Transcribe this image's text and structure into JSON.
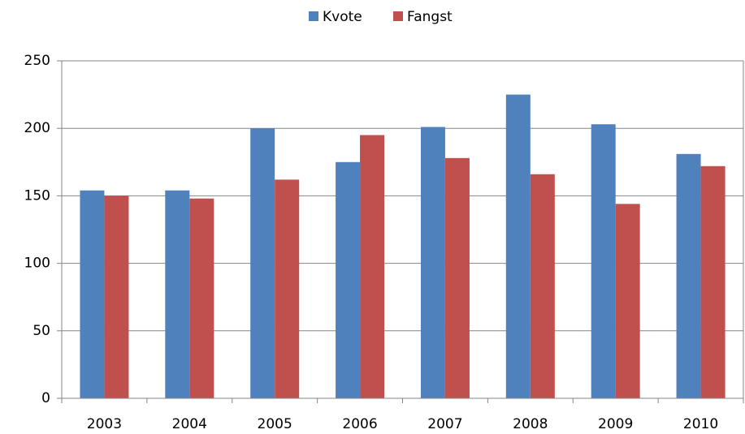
{
  "chart_data": {
    "type": "bar",
    "categories": [
      "2003",
      "2004",
      "2005",
      "2006",
      "2007",
      "2008",
      "2009",
      "2010"
    ],
    "series": [
      {
        "name": "Kvote",
        "color": "#4f81bd",
        "values": [
          154,
          154,
          200,
          175,
          201,
          225,
          203,
          181
        ]
      },
      {
        "name": "Fangst",
        "color": "#c0504d",
        "values": [
          150,
          148,
          162,
          195,
          178,
          166,
          144,
          172
        ]
      }
    ],
    "ylim": [
      0,
      250
    ],
    "yticks": [
      0,
      50,
      100,
      150,
      200,
      250
    ],
    "grid": true,
    "legend": "top"
  }
}
